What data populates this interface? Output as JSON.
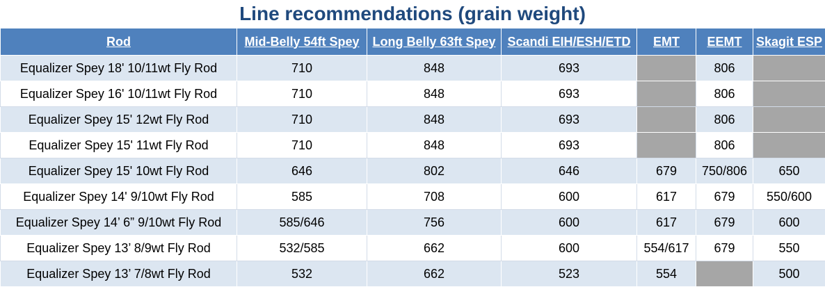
{
  "header": {
    "title": "Line recommendations (grain weight)"
  },
  "table": {
    "columns": [
      "Rod",
      "Mid-Belly 54ft Spey",
      "Long Belly 63ft Spey",
      "Scandi EIH/ESH/ETD",
      "EMT",
      "EEMT",
      "Skagit ESP"
    ],
    "rows": [
      [
        "Equalizer Spey 18' 10/11wt Fly Rod",
        "710",
        "848",
        "693",
        null,
        "806",
        null
      ],
      [
        "Equalizer Spey 16' 10/11wt Fly Rod",
        "710",
        "848",
        "693",
        null,
        "806",
        null
      ],
      [
        "Equalizer Spey 15' 12wt Fly Rod",
        "710",
        "848",
        "693",
        null,
        "806",
        null
      ],
      [
        "Equalizer Spey 15' 11wt Fly Rod",
        "710",
        "848",
        "693",
        null,
        "806",
        null
      ],
      [
        "Equalizer Spey 15' 10wt Fly Rod",
        "646",
        "802",
        "646",
        "679",
        "750/806",
        "650"
      ],
      [
        "Equalizer Spey 14' 9/10wt Fly Rod",
        "585",
        "708",
        "600",
        "617",
        "679",
        "550/600"
      ],
      [
        "Equalizer Spey 14’ 6” 9/10wt Fly Rod",
        "585/646",
        "756",
        "600",
        "617",
        "679",
        "600"
      ],
      [
        "Equalizer Spey 13’ 8/9wt Fly Rod",
        "532/585",
        "662",
        "600",
        "554/617",
        "679",
        "550"
      ],
      [
        "Equalizer Spey 13’ 7/8wt Fly Rod",
        "532",
        "662",
        "523",
        "554",
        null,
        "500"
      ]
    ]
  }
}
